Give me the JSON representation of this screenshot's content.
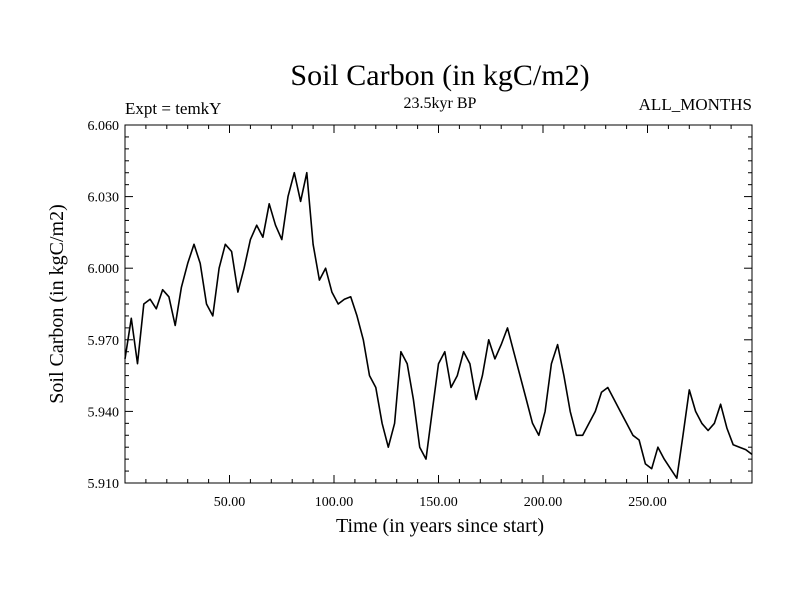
{
  "chart_data": {
    "type": "line",
    "title": "Soil Carbon (in kgC/m2)",
    "subtitle_left": "Expt = temkY",
    "subtitle_center": "23.5kyr BP",
    "subtitle_right": "ALL_MONTHS",
    "xlabel": "Time (in years since start)",
    "ylabel": "Soil Carbon (in kgC/m2)",
    "xlim": [
      0,
      300
    ],
    "ylim": [
      5.91,
      6.06
    ],
    "x_ticks": [
      50,
      100,
      150,
      200,
      250
    ],
    "x_tick_labels": [
      "50.00",
      "100.00",
      "150.00",
      "200.00",
      "250.00"
    ],
    "y_ticks": [
      5.91,
      5.94,
      5.97,
      6.0,
      6.03,
      6.06
    ],
    "y_tick_labels": [
      "5.910",
      "5.940",
      "5.970",
      "6.000",
      "6.030",
      "6.060"
    ],
    "series": [
      {
        "name": "Soil Carbon",
        "color": "#000000",
        "x": [
          0,
          3,
          6,
          9,
          12,
          15,
          18,
          21,
          24,
          27,
          30,
          33,
          36,
          39,
          42,
          45,
          48,
          51,
          54,
          57,
          60,
          63,
          66,
          69,
          72,
          75,
          78,
          81,
          84,
          87,
          90,
          93,
          96,
          99,
          102,
          105,
          108,
          111,
          114,
          117,
          120,
          123,
          126,
          129,
          132,
          135,
          138,
          141,
          144,
          147,
          150,
          153,
          156,
          159,
          162,
          165,
          168,
          171,
          174,
          177,
          180,
          183,
          186,
          189,
          192,
          195,
          198,
          201,
          204,
          207,
          210,
          213,
          216,
          219,
          222,
          225,
          228,
          231,
          234,
          237,
          240,
          243,
          246,
          249,
          252,
          255,
          258,
          261,
          264,
          267,
          270,
          273,
          276,
          279,
          282,
          285,
          288,
          291,
          294,
          297,
          300
        ],
        "values": [
          5.962,
          5.979,
          5.96,
          5.985,
          5.987,
          5.983,
          5.991,
          5.988,
          5.976,
          5.992,
          6.002,
          6.01,
          6.002,
          5.985,
          5.98,
          6.0,
          6.01,
          6.007,
          5.99,
          6.0,
          6.012,
          6.018,
          6.013,
          6.027,
          6.018,
          6.012,
          6.03,
          6.04,
          6.028,
          6.04,
          6.01,
          5.995,
          6.0,
          5.99,
          5.985,
          5.987,
          5.988,
          5.98,
          5.97,
          5.955,
          5.95,
          5.935,
          5.925,
          5.935,
          5.965,
          5.96,
          5.945,
          5.925,
          5.92,
          5.94,
          5.96,
          5.965,
          5.95,
          5.955,
          5.965,
          5.96,
          5.945,
          5.955,
          5.97,
          5.962,
          5.968,
          5.975,
          5.965,
          5.955,
          5.945,
          5.935,
          5.93,
          5.94,
          5.96,
          5.968,
          5.955,
          5.94,
          5.93,
          5.93,
          5.935,
          5.94,
          5.948,
          5.95,
          5.945,
          5.94,
          5.935,
          5.93,
          5.928,
          5.918,
          5.916,
          5.925,
          5.92,
          5.916,
          5.912,
          5.93,
          5.949,
          5.94,
          5.935,
          5.932,
          5.935,
          5.943,
          5.933,
          5.926,
          5.925,
          5.924,
          5.922
        ]
      }
    ]
  }
}
